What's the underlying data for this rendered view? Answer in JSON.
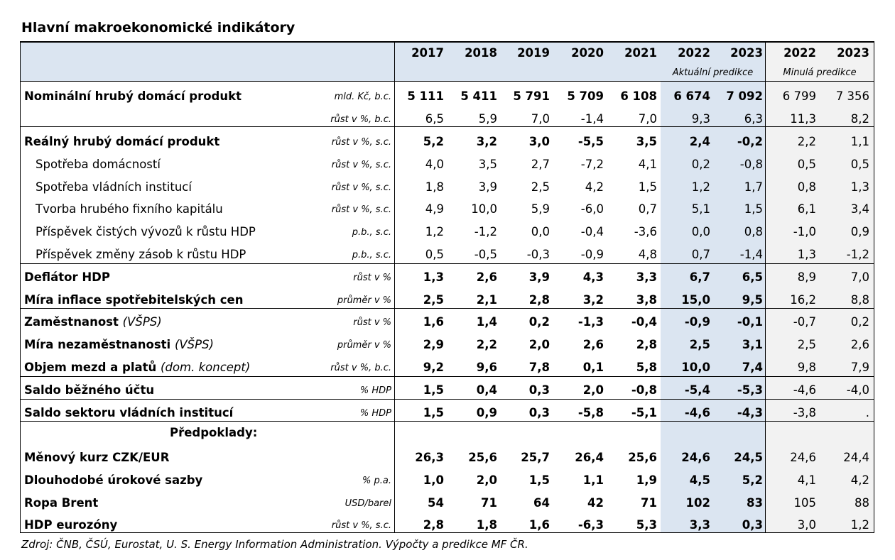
{
  "title": "Hlavní makroekonomické indikátory",
  "header": {
    "years_hist": [
      "2017",
      "2018",
      "2019",
      "2020",
      "2021"
    ],
    "years_act": [
      "2022",
      "2023"
    ],
    "years_past": [
      "2022",
      "2023"
    ],
    "note_act": "Aktuální predikce",
    "note_past": "Minulá predikce"
  },
  "rows": [
    {
      "label": "Nominální hrubý domácí produkt",
      "style": "bold",
      "unit": "mld. Kč, b.c.",
      "values": [
        "5 111",
        "5 411",
        "5 791",
        "5 709",
        "6 108",
        "6 674",
        "7 092",
        "6 799",
        "7 356"
      ]
    },
    {
      "label": "",
      "style": "plain",
      "unit": "růst v %, b.c.",
      "values": [
        "6,5",
        "5,9",
        "7,0",
        "-1,4",
        "7,0",
        "9,3",
        "6,3",
        "11,3",
        "8,2"
      ]
    },
    {
      "label": "Reálný hrubý domácí produkt",
      "style": "bold",
      "unit": "růst v %, s.c.",
      "values": [
        "5,2",
        "3,2",
        "3,0",
        "-5,5",
        "3,5",
        "2,4",
        "-0,2",
        "2,2",
        "1,1"
      ]
    },
    {
      "label": "Spotřeba domácností",
      "style": "sub",
      "unit": "růst v %, s.c.",
      "values": [
        "4,0",
        "3,5",
        "2,7",
        "-7,2",
        "4,1",
        "0,2",
        "-0,8",
        "0,5",
        "0,5"
      ]
    },
    {
      "label": "Spotřeba vládních institucí",
      "style": "sub",
      "unit": "růst v %, s.c.",
      "values": [
        "1,8",
        "3,9",
        "2,5",
        "4,2",
        "1,5",
        "1,2",
        "1,7",
        "0,8",
        "1,3"
      ]
    },
    {
      "label": "Tvorba hrubého fixního kapitálu",
      "style": "sub",
      "unit": "růst v %, s.c.",
      "values": [
        "4,9",
        "10,0",
        "5,9",
        "-6,0",
        "0,7",
        "5,1",
        "1,5",
        "6,1",
        "3,4"
      ]
    },
    {
      "label": "Příspěvek čistých vývozů k růstu HDP",
      "style": "sub",
      "unit": "p.b., s.c.",
      "values": [
        "1,2",
        "-1,2",
        "0,0",
        "-0,4",
        "-3,6",
        "0,0",
        "0,8",
        "-1,0",
        "0,9"
      ]
    },
    {
      "label": "Příspěvek změny zásob k růstu HDP",
      "style": "sub",
      "unit": "p.b., s.c.",
      "values": [
        "0,5",
        "-0,5",
        "-0,3",
        "-0,9",
        "4,8",
        "0,7",
        "-1,4",
        "1,3",
        "-1,2"
      ]
    },
    {
      "label": "Deflátor HDP",
      "style": "bold",
      "unit": "růst v %",
      "values": [
        "1,3",
        "2,6",
        "3,9",
        "4,3",
        "3,3",
        "6,7",
        "6,5",
        "8,9",
        "7,0"
      ]
    },
    {
      "label": "Míra inflace spotřebitelských cen",
      "style": "bold",
      "unit": "průměr v %",
      "values": [
        "2,5",
        "2,1",
        "2,8",
        "3,2",
        "3,8",
        "15,0",
        "9,5",
        "16,2",
        "8,8"
      ]
    },
    {
      "label": "Zaměstnanost",
      "label_note": "(VŠPS)",
      "style": "bold",
      "unit": "růst v %",
      "values": [
        "1,6",
        "1,4",
        "0,2",
        "-1,3",
        "-0,4",
        "-0,9",
        "-0,1",
        "-0,7",
        "0,2"
      ]
    },
    {
      "label": "Míra nezaměstnanosti",
      "label_note": "(VŠPS)",
      "style": "bold",
      "unit": "průměr v %",
      "values": [
        "2,9",
        "2,2",
        "2,0",
        "2,6",
        "2,8",
        "2,5",
        "3,1",
        "2,5",
        "2,6"
      ]
    },
    {
      "label": "Objem mezd a platů",
      "label_note": "(dom. koncept)",
      "style": "bold",
      "unit": "růst v %, b.c.",
      "values": [
        "9,2",
        "9,6",
        "7,8",
        "0,1",
        "5,8",
        "10,0",
        "7,4",
        "9,8",
        "7,9"
      ]
    },
    {
      "label": "Saldo běžného účtu",
      "style": "bold",
      "unit": "% HDP",
      "values": [
        "1,5",
        "0,4",
        "0,3",
        "2,0",
        "-0,8",
        "-5,4",
        "-5,3",
        "-4,6",
        "-4,0"
      ]
    },
    {
      "label": "Saldo sektoru vládních institucí",
      "style": "bold",
      "unit": "% HDP",
      "values": [
        "1,5",
        "0,9",
        "0,3",
        "-5,8",
        "-5,1",
        "-4,6",
        "-4,3",
        "-3,8",
        "."
      ]
    },
    {
      "label": "Měnový kurz CZK/EUR",
      "style": "bold",
      "unit": "",
      "values": [
        "26,3",
        "25,6",
        "25,7",
        "26,4",
        "25,6",
        "24,6",
        "24,5",
        "24,6",
        "24,4"
      ]
    },
    {
      "label": "Dlouhodobé úrokové sazby",
      "style": "bold",
      "unit": "% p.a.",
      "values": [
        "1,0",
        "2,0",
        "1,5",
        "1,1",
        "1,9",
        "4,5",
        "5,2",
        "4,1",
        "4,2"
      ]
    },
    {
      "label": "Ropa Brent",
      "style": "bold",
      "unit": "USD/barel",
      "values": [
        "54",
        "71",
        "64",
        "42",
        "71",
        "102",
        "83",
        "105",
        "88"
      ]
    },
    {
      "label": "HDP eurozóny",
      "style": "bold",
      "unit": "růst v %, s.c.",
      "values": [
        "2,8",
        "1,8",
        "1,6",
        "-6,3",
        "5,3",
        "3,3",
        "0,3",
        "3,0",
        "1,2"
      ]
    }
  ],
  "section_label": "Předpoklady:",
  "source": "Zdroj: ČNB, ČSÚ, Eurostat, U. S. Energy Information Administration. Výpočty a predikce MF ČR.",
  "colors": {
    "header_bg": "#dbe5f1",
    "current_forecast_bg": "#dbe5f1",
    "past_forecast_bg": "#f2f2f2",
    "grid": "#000000"
  }
}
